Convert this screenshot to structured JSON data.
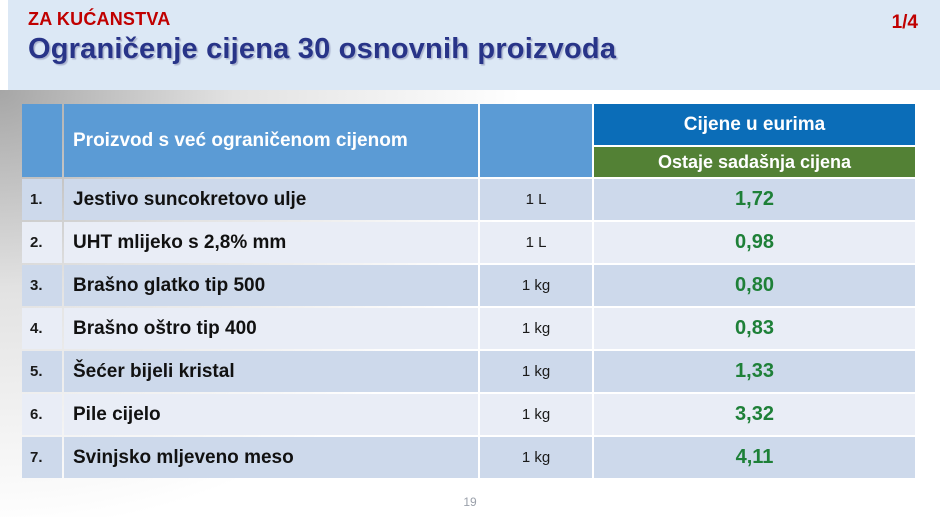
{
  "header": {
    "eyebrow": "ZA KUĆANSTVA",
    "title": "Ograničenje cijena 30 osnovnih proizvoda",
    "page_indicator": "1/4"
  },
  "table": {
    "product_column_header": "Proizvod s već ograničenom cijenom",
    "price_group_header": "Cijene u eurima",
    "price_sub_header": "Ostaje sadašnja cijena",
    "rows": [
      {
        "num": "1.",
        "product": "Jestivo suncokretovo ulje",
        "unit": "1 L",
        "price": "1,72"
      },
      {
        "num": "2.",
        "product": "UHT mlijeko s 2,8% mm",
        "unit": "1 L",
        "price": "0,98"
      },
      {
        "num": "3.",
        "product": "Brašno glatko tip 500",
        "unit": "1 kg",
        "price": "0,80"
      },
      {
        "num": "4.",
        "product": "Brašno oštro tip 400",
        "unit": "1 kg",
        "price": "0,83"
      },
      {
        "num": "5.",
        "product": "Šećer bijeli kristal",
        "unit": "1 kg",
        "price": "1,33"
      },
      {
        "num": "6.",
        "product": "Pile cijelo",
        "unit": "1 kg",
        "price": "3,32"
      },
      {
        "num": "7.",
        "product": "Svinjsko mljeveno meso",
        "unit": "1 kg",
        "price": "4,11"
      }
    ]
  },
  "footer": {
    "page_number": "19"
  },
  "colors": {
    "band_background": "#dce8f5",
    "eyebrow_red": "#c00000",
    "title_blue": "#283488",
    "table_header_blue": "#5b9bd5",
    "price_group_blue": "#0b6db8",
    "price_sub_green": "#538135",
    "row_band_dark": "#cdd9eb",
    "row_band_light": "#e9edf6",
    "price_text_green": "#1e8038"
  }
}
